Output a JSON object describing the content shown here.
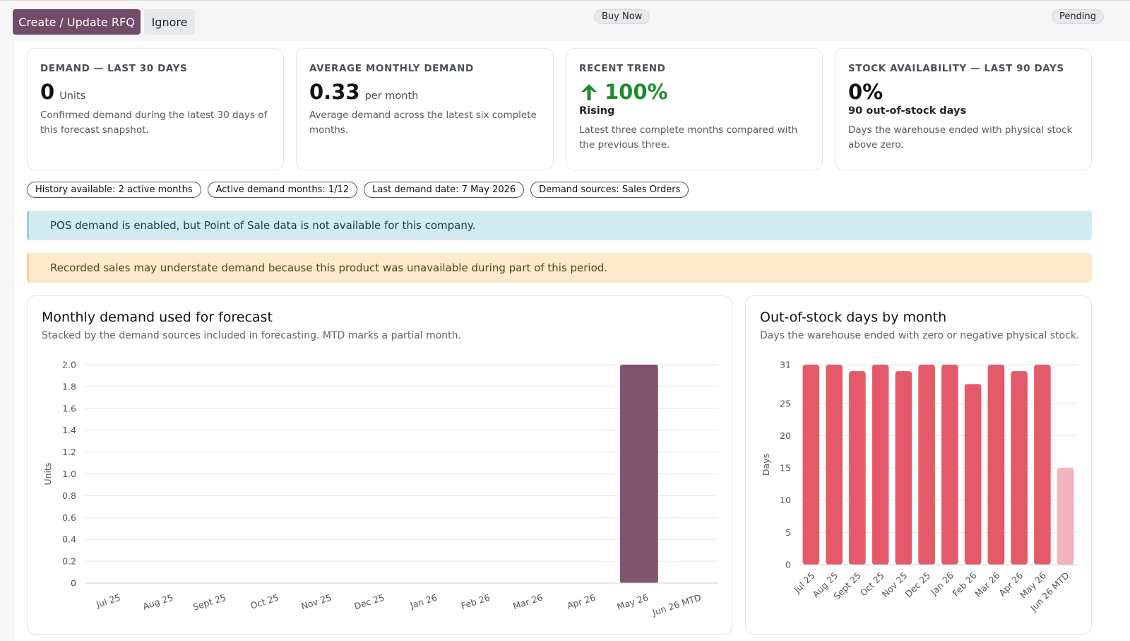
{
  "toolbar": {
    "rfq_label": "Create / Update RFQ",
    "ignore_label": "Ignore",
    "buy_now_label": "Buy Now",
    "status_label": "Pending"
  },
  "cards": [
    {
      "title": "DEMAND — LAST 30 DAYS",
      "value": "0",
      "unit": "Units",
      "desc": "Confirmed demand during the latest 30 days of this forecast snapshot."
    },
    {
      "title": "AVERAGE MONTHLY DEMAND",
      "value": "0.33",
      "unit": "per month",
      "desc": "Average demand across the latest six complete months."
    },
    {
      "title": "RECENT TREND",
      "value": "100%",
      "sub": "Rising",
      "desc": "Latest three complete months compared with the previous three.",
      "icon": "arrow-up-icon",
      "color": "#1f8c2e"
    },
    {
      "title": "STOCK AVAILABILITY — LAST 90 DAYS",
      "value": "0%",
      "sub": "90 out-of-stock days",
      "desc": "Days the warehouse ended with physical stock above zero."
    }
  ],
  "chips": [
    "History available: 2 active months",
    "Active demand months: 1/12",
    "Last demand date: 7 May 2026",
    "Demand sources: Sales Orders"
  ],
  "alerts": {
    "info": "POS demand is enabled, but Point of Sale data is not available for this company.",
    "warning": "Recorded sales may understate demand because this product was unavailable during part of this period."
  },
  "chart_data": [
    {
      "type": "bar",
      "title": "Monthly demand used for forecast",
      "subtitle": "Stacked by the demand sources included in forecasting. MTD marks a partial month.",
      "ylabel": "Units",
      "ylim": [
        0,
        2.0
      ],
      "yticks": [
        "0",
        "0.2",
        "0.4",
        "0.6",
        "0.8",
        "1.0",
        "1.2",
        "1.4",
        "1.6",
        "1.8",
        "2.0"
      ],
      "categories": [
        "Jul 25",
        "Aug 25",
        "Sept 25",
        "Oct 25",
        "Nov 25",
        "Dec 25",
        "Jan 26",
        "Feb 26",
        "Mar 26",
        "Apr 26",
        "May 26",
        "Jun 26 MTD"
      ],
      "values": [
        0,
        0,
        0,
        0,
        0,
        0,
        0,
        0,
        0,
        0,
        2,
        0
      ],
      "color": "#80546f",
      "grid": true
    },
    {
      "type": "bar",
      "title": "Out-of-stock days by month",
      "subtitle": "Days the warehouse ended with zero or negative physical stock.",
      "ylabel": "Days",
      "ylim": [
        0,
        31
      ],
      "yticks": [
        "0",
        "5",
        "10",
        "15",
        "20",
        "25",
        "31"
      ],
      "categories": [
        "Jul 25",
        "Aug 25",
        "Sept 25",
        "Oct 25",
        "Nov 25",
        "Dec 25",
        "Jan 26",
        "Feb 26",
        "Mar 26",
        "Apr 26",
        "May 26",
        "Jun 26 MTD"
      ],
      "values": [
        31,
        31,
        30,
        31,
        30,
        31,
        31,
        28,
        31,
        30,
        31,
        15
      ],
      "color": "#e55a6a",
      "partial_color": "#f3b3bb",
      "grid": true
    }
  ]
}
